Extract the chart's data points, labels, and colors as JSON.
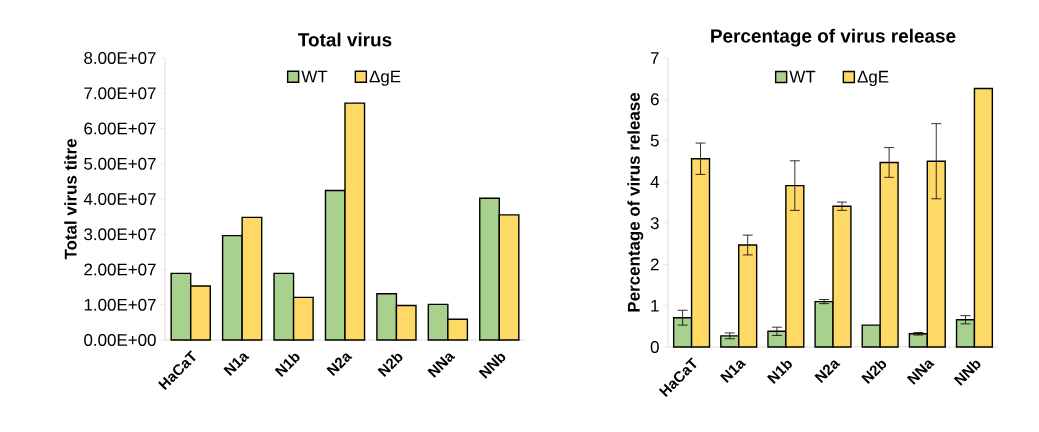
{
  "chart_data": [
    {
      "type": "bar",
      "title": "Total virus",
      "ylabel": "Total virus titre",
      "categories": [
        "HaCaT",
        "N1a",
        "N1b",
        "N2a",
        "N2b",
        "NNa",
        "NNb"
      ],
      "series": [
        {
          "name": "WT",
          "color": "#a9d18e",
          "values": [
            18900000,
            29600000,
            18900000,
            42400000,
            13100000,
            10100000,
            40200000
          ]
        },
        {
          "name": "ΔgE",
          "color": "#ffd966",
          "values": [
            15300000,
            34800000,
            12100000,
            67200000,
            9800000,
            5900000,
            35500000
          ]
        }
      ],
      "ylim": [
        0,
        80000000
      ],
      "yticks": [
        {
          "value": 0,
          "label": "0.00E+00"
        },
        {
          "value": 10000000,
          "label": "1.00E+07"
        },
        {
          "value": 20000000,
          "label": "2.00E+07"
        },
        {
          "value": 30000000,
          "label": "3.00E+07"
        },
        {
          "value": 40000000,
          "label": "4.00E+07"
        },
        {
          "value": 50000000,
          "label": "5.00E+07"
        },
        {
          "value": 60000000,
          "label": "6.00E+07"
        },
        {
          "value": 70000000,
          "label": "7.00E+07"
        },
        {
          "value": 80000000,
          "label": "8.00E+07"
        }
      ],
      "legend": "top"
    },
    {
      "type": "bar",
      "title": "Percentage of virus release",
      "ylabel": "Percentage of virus release",
      "categories": [
        "HaCaT",
        "N1a",
        "N1b",
        "N2a",
        "N2b",
        "NNa",
        "NNb"
      ],
      "series": [
        {
          "name": "WT",
          "color": "#a9d18e",
          "values": [
            0.71,
            0.27,
            0.38,
            1.1,
            0.53,
            0.32,
            0.66
          ],
          "errors": [
            0.18,
            0.07,
            0.1,
            0.05,
            null,
            0.03,
            0.1
          ]
        },
        {
          "name": "ΔgE",
          "color": "#ffd966",
          "values": [
            4.56,
            2.47,
            3.91,
            3.41,
            4.47,
            4.5,
            6.26
          ],
          "errors": [
            0.38,
            0.24,
            0.6,
            0.1,
            0.36,
            0.91,
            null
          ]
        }
      ],
      "ylim": [
        0,
        7
      ],
      "yticks": [
        0,
        1,
        2,
        3,
        4,
        5,
        6,
        7
      ],
      "legend": "top"
    }
  ]
}
